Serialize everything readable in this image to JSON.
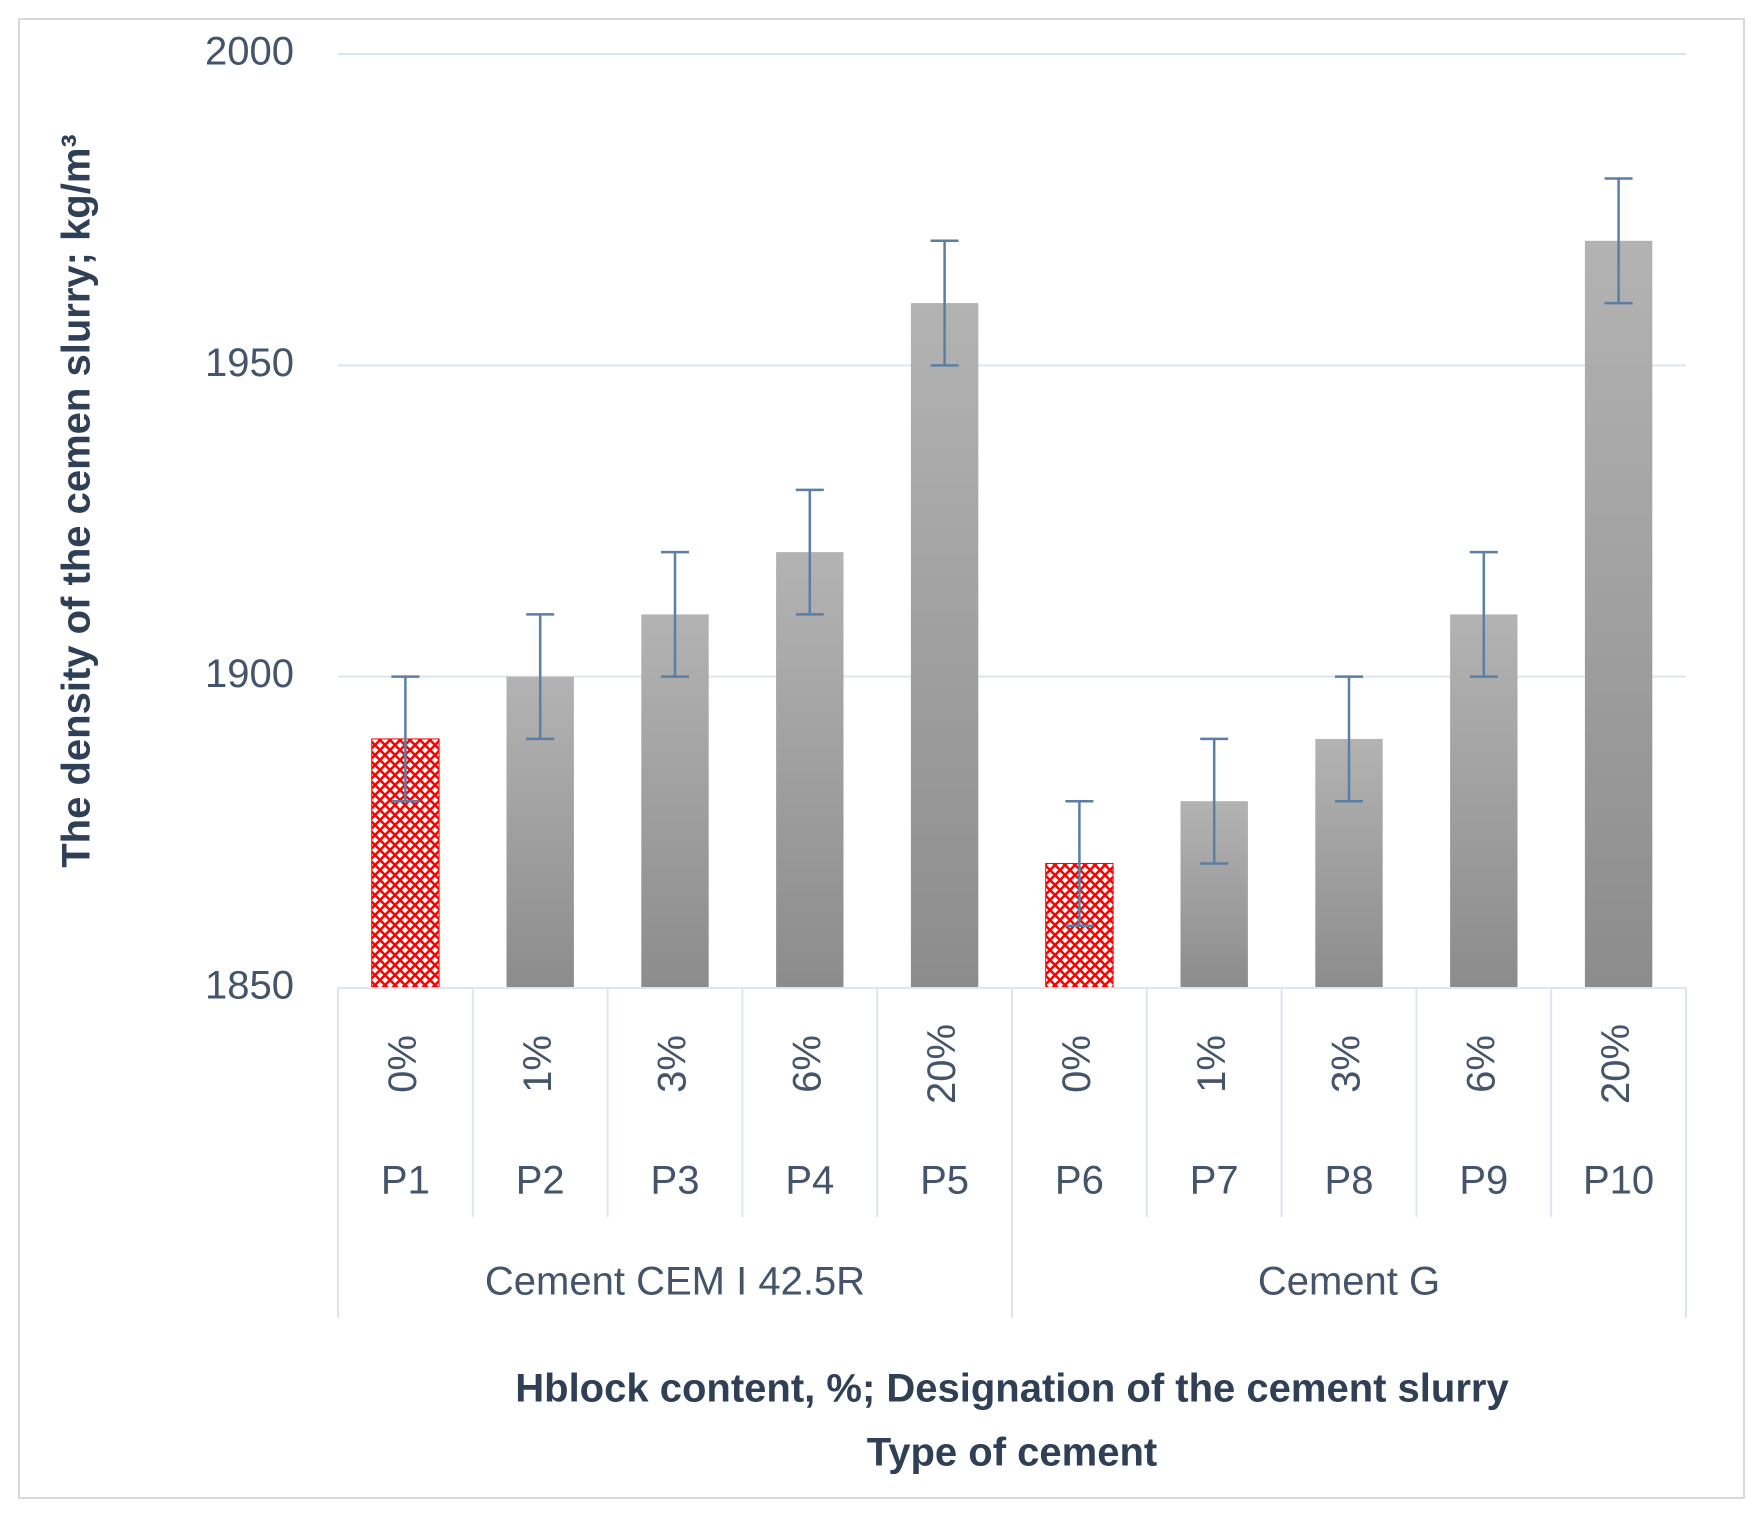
{
  "chart_data": {
    "type": "bar",
    "y_title": "The density of the cemen slurry; kg/m³",
    "x_title": "Hblock content, %; Designation of the cement slurry",
    "x_title_2": "Type of cement",
    "ylim": [
      1850,
      2000
    ],
    "yticks": [
      1850,
      1900,
      1950,
      2000
    ],
    "grid": true,
    "color": "#9e9e9e",
    "highlight_color": "#ff0000",
    "error_color": "#5b7ea4",
    "groups": [
      {
        "name": "Cement CEM I 42.5R",
        "content": [
          "0%",
          "1%",
          "3%",
          "6%",
          "20%"
        ],
        "categories": [
          "P1",
          "P2",
          "P3",
          "P4",
          "P5"
        ],
        "values": [
          1890,
          1900,
          1910,
          1920,
          1960
        ],
        "errors": [
          10,
          10,
          10,
          10,
          10
        ],
        "styles": [
          "hatch",
          "solid",
          "solid",
          "solid",
          "solid"
        ]
      },
      {
        "name": "Cement G",
        "content": [
          "0%",
          "1%",
          "3%",
          "6%",
          "20%"
        ],
        "categories": [
          "P6",
          "P7",
          "P8",
          "P9",
          "P10"
        ],
        "values": [
          1870,
          1880,
          1890,
          1910,
          1970
        ],
        "errors": [
          10,
          10,
          10,
          10,
          10
        ],
        "styles": [
          "hatch",
          "solid",
          "solid",
          "solid",
          "solid"
        ]
      }
    ]
  }
}
